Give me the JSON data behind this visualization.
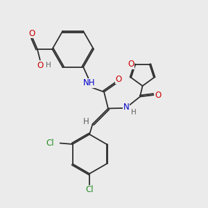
{
  "background_color": "#ebebeb",
  "bond_color": "#2d2d2d",
  "atom_colors": {
    "N": "#0000cc",
    "O": "#cc0000",
    "Cl": "#228B22",
    "H": "#606060",
    "C": "#2d2d2d"
  },
  "figsize": [
    3.0,
    3.0
  ],
  "dpi": 100,
  "xlim": [
    0,
    10
  ],
  "ylim": [
    0,
    10
  ],
  "font_size": 8.5,
  "lw": 1.3
}
